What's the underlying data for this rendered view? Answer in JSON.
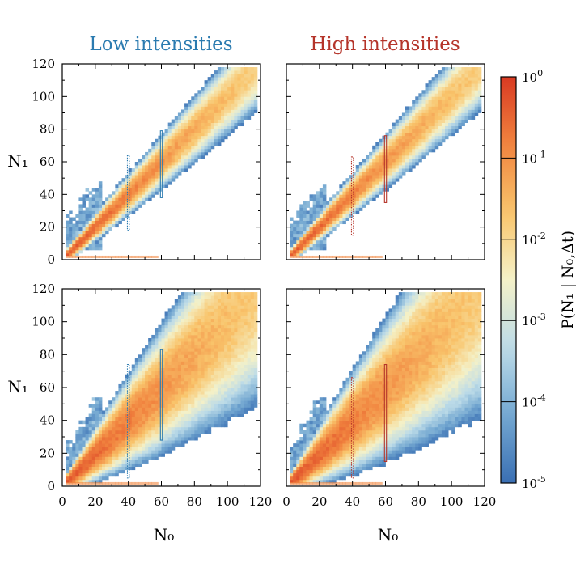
{
  "figure": {
    "col_titles": [
      {
        "text": "Low intensities",
        "color": "#2b7bb0"
      },
      {
        "text": "High intensities",
        "color": "#b5342a"
      }
    ],
    "colorbar": {
      "label": "P(N₁ | N₀,Δt)",
      "scale": "log",
      "range": [
        1e-05,
        1
      ],
      "ticks": [
        {
          "base": "10",
          "exp": "0",
          "value": 1
        },
        {
          "base": "10",
          "exp": "-1",
          "value": 0.1
        },
        {
          "base": "10",
          "exp": "-2",
          "value": 0.01
        },
        {
          "base": "10",
          "exp": "-3",
          "value": 0.001
        },
        {
          "base": "10",
          "exp": "-4",
          "value": 0.0001
        },
        {
          "base": "10",
          "exp": "-5",
          "value": 1e-05
        }
      ],
      "colors": [
        "#3a6fb3",
        "#74a8d1",
        "#bcdbe8",
        "#f4f1c8",
        "#f9c46b",
        "#f1843f",
        "#d93a22"
      ]
    }
  },
  "chart_data": [
    {
      "type": "heatmap",
      "title": "Low intensities",
      "position": "top-left",
      "xlabel": "",
      "ylabel": "N₁",
      "xlim": [
        0,
        120
      ],
      "ylim": [
        0,
        120
      ],
      "xticks": [
        "0",
        "20",
        "40",
        "60",
        "80",
        "100",
        "120"
      ],
      "yticks": [
        "0",
        "20",
        "40",
        "60",
        "80",
        "100",
        "120"
      ],
      "spread": 0.06,
      "lowfill": 0.1,
      "floor_level": -4.8,
      "highlight_boxes": [
        {
          "n0": 40,
          "n1_range": [
            18,
            64
          ],
          "style": "dotted",
          "color": "#2b7bb0"
        },
        {
          "n0": 60,
          "n1_range": [
            38,
            79
          ],
          "style": "solid",
          "color": "#2b7bb0"
        }
      ]
    },
    {
      "type": "heatmap",
      "title": "High intensities",
      "position": "top-right",
      "xlabel": "",
      "ylabel": "",
      "xlim": [
        0,
        120
      ],
      "ylim": [
        0,
        120
      ],
      "xticks": [
        "0",
        "20",
        "40",
        "60",
        "80",
        "100",
        "120"
      ],
      "yticks": [
        "0",
        "20",
        "40",
        "60",
        "80",
        "100",
        "120"
      ],
      "spread": 0.06,
      "lowfill": 0.1,
      "floor_level": -4.8,
      "highlight_boxes": [
        {
          "n0": 40,
          "n1_range": [
            15,
            63
          ],
          "style": "dotted",
          "color": "#b5342a"
        },
        {
          "n0": 60,
          "n1_range": [
            35,
            76
          ],
          "style": "solid",
          "color": "#b5342a"
        }
      ]
    },
    {
      "type": "heatmap",
      "title": "",
      "position": "bottom-left",
      "xlabel": "N₀",
      "ylabel": "N₁",
      "xlim": [
        0,
        120
      ],
      "ylim": [
        0,
        120
      ],
      "xticks": [
        "0",
        "20",
        "40",
        "60",
        "80",
        "100",
        "120"
      ],
      "yticks": [
        "0",
        "20",
        "40",
        "60",
        "80",
        "100",
        "120"
      ],
      "spread": 0.2,
      "lowfill": 0.55,
      "floor_level": -4.8,
      "highlight_boxes": [
        {
          "n0": 40,
          "n1_range": [
            5,
            74
          ],
          "style": "dotted",
          "color": "#2b7bb0"
        },
        {
          "n0": 60,
          "n1_range": [
            28,
            83
          ],
          "style": "solid",
          "color": "#2b7bb0"
        }
      ]
    },
    {
      "type": "heatmap",
      "title": "",
      "position": "bottom-right",
      "xlabel": "N₀",
      "ylabel": "",
      "xlim": [
        0,
        120
      ],
      "ylim": [
        0,
        120
      ],
      "xticks": [
        "0",
        "20",
        "40",
        "60",
        "80",
        "100",
        "120"
      ],
      "yticks": [
        "0",
        "20",
        "40",
        "60",
        "80",
        "100",
        "120"
      ],
      "spread": 0.22,
      "lowfill": 0.65,
      "floor_level": -4.8,
      "highlight_boxes": [
        {
          "n0": 40,
          "n1_range": [
            5,
            66
          ],
          "style": "dotted",
          "color": "#b5342a"
        },
        {
          "n0": 60,
          "n1_range": [
            15,
            74
          ],
          "style": "solid",
          "color": "#b5342a"
        }
      ]
    }
  ]
}
